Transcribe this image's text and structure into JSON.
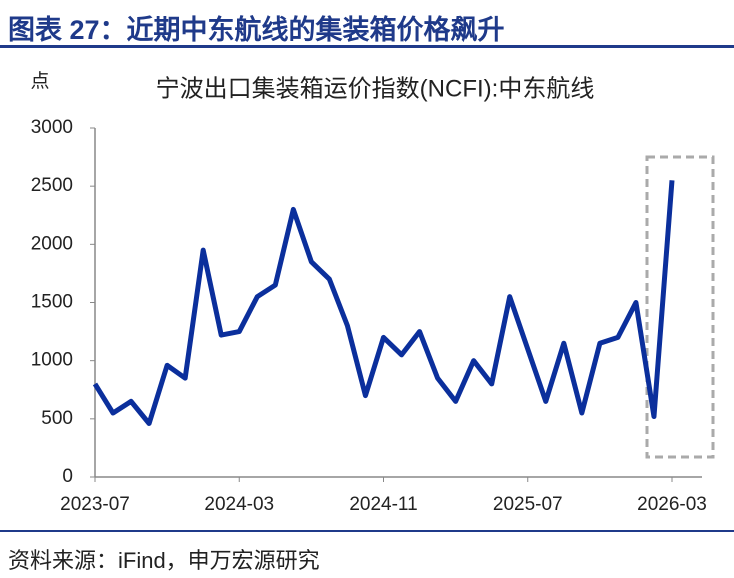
{
  "header": "图表 27：近期中东航线的集装箱价格飙升",
  "source": "资料来源：iFind，申万宏源研究",
  "chart_data": {
    "type": "line",
    "title": "宁波出口集装箱运价指数(NCFI):中东航线",
    "ylabel": "点",
    "categories": [
      "2023-07",
      null,
      null,
      null,
      null,
      null,
      null,
      null,
      "2024-03",
      null,
      null,
      null,
      null,
      null,
      null,
      null,
      "2024-11",
      null,
      null,
      null,
      null,
      null,
      null,
      null,
      "2025-07",
      null,
      null,
      null,
      null,
      null,
      null,
      null,
      "2026-03"
    ],
    "series": [
      {
        "name": "NCFI中东航线",
        "color": "#0b2f9c",
        "values": [
          800,
          550,
          650,
          460,
          960,
          850,
          1950,
          1220,
          1250,
          1550,
          1650,
          2300,
          1850,
          1700,
          1300,
          700,
          1200,
          1050,
          1250,
          850,
          650,
          1000,
          800,
          1550,
          1100,
          650,
          1150,
          550,
          1150,
          1200,
          1500,
          520,
          2550
        ]
      }
    ],
    "ylim": [
      0,
      3000
    ],
    "yticks": [
      0,
      500,
      1000,
      1500,
      2000,
      2500,
      3000
    ]
  }
}
